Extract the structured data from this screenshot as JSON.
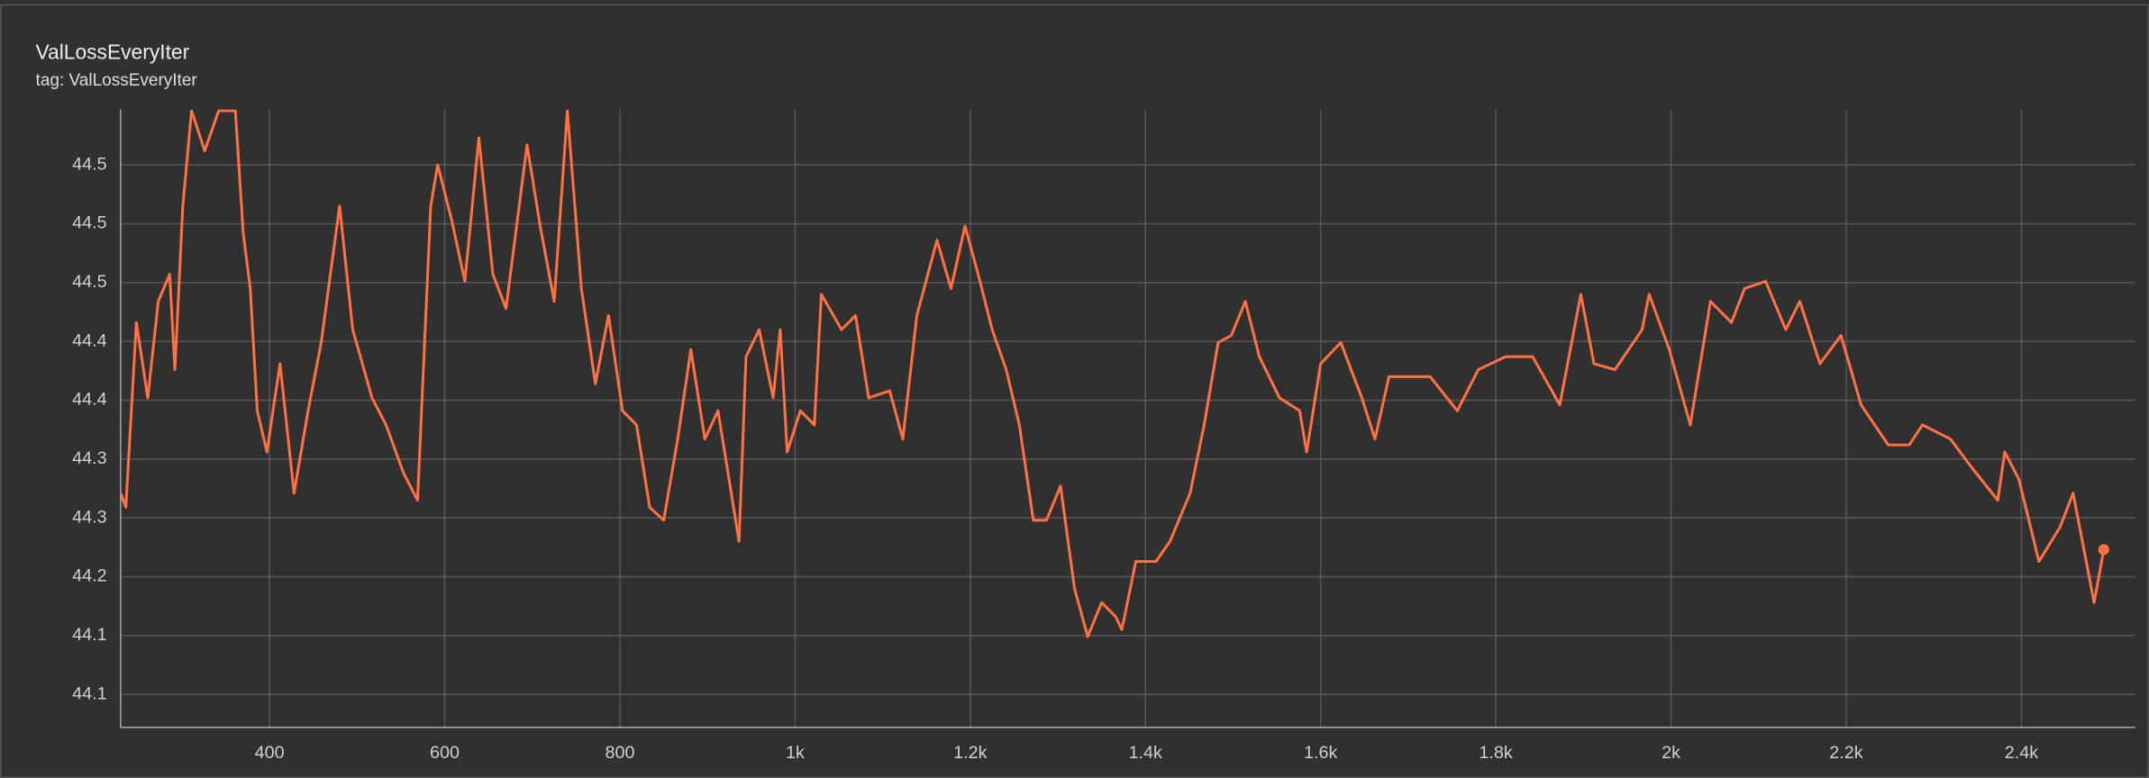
{
  "chart_data": {
    "type": "line",
    "title": "ValLossEveryIter",
    "subtitle": "tag: ValLossEveryIter",
    "x": [
      230,
      236,
      248,
      261,
      273,
      286,
      292,
      301,
      311,
      326,
      342,
      361,
      370,
      378,
      386,
      397,
      412,
      428,
      444,
      459,
      480,
      495,
      517,
      533,
      553,
      569,
      584,
      592,
      608,
      623,
      639,
      655,
      670,
      694,
      709,
      725,
      740,
      756,
      772,
      787,
      803,
      819,
      834,
      850,
      866,
      881,
      897,
      912,
      936,
      944,
      959,
      975,
      983,
      991,
      1006,
      1022,
      1030,
      1053,
      1069,
      1084,
      1108,
      1123,
      1139,
      1162,
      1178,
      1194,
      1209,
      1225,
      1241,
      1256,
      1272,
      1287,
      1303,
      1319,
      1334,
      1350,
      1366,
      1373,
      1389,
      1412,
      1428,
      1451,
      1467,
      1483,
      1498,
      1514,
      1530,
      1553,
      1576,
      1584,
      1600,
      1623,
      1647,
      1662,
      1678,
      1701,
      1725,
      1756,
      1780,
      1811,
      1842,
      1873,
      1897,
      1912,
      1936,
      1967,
      1975,
      1998,
      2022,
      2045,
      2069,
      2084,
      2108,
      2131,
      2147,
      2170,
      2194,
      2217,
      2248,
      2272,
      2287,
      2319,
      2342,
      2373,
      2381,
      2397,
      2420,
      2444,
      2459,
      2483,
      2494
    ],
    "series": [
      {
        "name": "ValLossEveryIter",
        "color": "#ff7043",
        "values": [
          44.271,
          44.259,
          44.416,
          44.352,
          44.434,
          44.457,
          44.376,
          44.515,
          44.596,
          44.562,
          44.596,
          44.596,
          44.492,
          44.445,
          44.341,
          44.306,
          44.381,
          44.271,
          44.341,
          44.399,
          44.515,
          44.41,
          44.352,
          44.329,
          44.288,
          44.265,
          44.515,
          44.55,
          44.503,
          44.451,
          44.573,
          44.457,
          44.428,
          44.567,
          44.498,
          44.434,
          44.596,
          44.445,
          44.364,
          44.422,
          44.341,
          44.329,
          44.259,
          44.248,
          44.317,
          44.393,
          44.317,
          44.341,
          44.23,
          44.387,
          44.41,
          44.352,
          44.41,
          44.306,
          44.341,
          44.329,
          44.44,
          44.41,
          44.422,
          44.352,
          44.358,
          44.317,
          44.422,
          44.486,
          44.445,
          44.498,
          44.457,
          44.41,
          44.376,
          44.329,
          44.248,
          44.248,
          44.277,
          44.19,
          44.149,
          44.178,
          44.166,
          44.155,
          44.213,
          44.213,
          44.23,
          44.271,
          44.329,
          44.399,
          44.405,
          44.434,
          44.387,
          44.352,
          44.341,
          44.306,
          44.381,
          44.399,
          44.352,
          44.317,
          44.37,
          44.37,
          44.37,
          44.341,
          44.376,
          44.387,
          44.387,
          44.346,
          44.44,
          44.381,
          44.376,
          44.41,
          44.44,
          44.393,
          44.329,
          44.434,
          44.416,
          44.445,
          44.451,
          44.41,
          44.434,
          44.381,
          44.405,
          44.346,
          44.312,
          44.312,
          44.329,
          44.317,
          44.294,
          44.265,
          44.306,
          44.283,
          44.213,
          44.242,
          44.271,
          44.178,
          44.223
        ]
      }
    ],
    "xlim": [
      230,
      2530
    ],
    "xticks": [
      400,
      600,
      800,
      {
        "value": 1000,
        "label": "1k"
      },
      {
        "value": 1200,
        "label": "1.2k"
      },
      {
        "value": 1400,
        "label": "1.4k"
      },
      {
        "value": 1600,
        "label": "1.6k"
      },
      {
        "value": 1800,
        "label": "1.8k"
      },
      {
        "value": 2000,
        "label": "2k"
      },
      {
        "value": 2200,
        "label": "2.2k"
      },
      {
        "value": 2400,
        "label": "2.4k"
      }
    ],
    "ylim": [
      44.072,
      44.597
    ],
    "yticks": [
      44.1,
      {
        "value": 44.15,
        "label": "44.1"
      },
      44.2,
      {
        "value": 44.25,
        "label": "44.3"
      },
      44.3,
      {
        "value": 44.35,
        "label": "44.4"
      },
      44.4,
      {
        "value": 44.45,
        "label": "44.5"
      },
      44.5,
      {
        "value": 44.55,
        "label": "44.5"
      }
    ],
    "grid": true
  }
}
